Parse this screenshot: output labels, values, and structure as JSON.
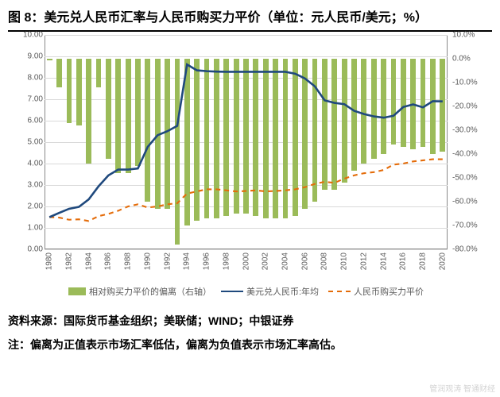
{
  "title": "图 8：美元兑人民币汇率与人民币购买力平价（单位：元人民币/美元；%）",
  "chart": {
    "type": "combo-bar-line",
    "years": [
      1980,
      1981,
      1982,
      1983,
      1984,
      1985,
      1986,
      1987,
      1988,
      1989,
      1990,
      1991,
      1992,
      1993,
      1994,
      1995,
      1996,
      1997,
      1998,
      1999,
      2000,
      2001,
      2002,
      2003,
      2004,
      2005,
      2006,
      2007,
      2008,
      2009,
      2010,
      2011,
      2012,
      2013,
      2014,
      2015,
      2016,
      2017,
      2018,
      2019,
      2020
    ],
    "x_ticks": [
      1980,
      1982,
      1984,
      1986,
      1988,
      1990,
      1992,
      1994,
      1996,
      1998,
      2000,
      2002,
      2004,
      2006,
      2008,
      2010,
      2012,
      2014,
      2016,
      2018,
      2020
    ],
    "left_axis": {
      "min": 0.0,
      "max": 10.0,
      "step": 1.0,
      "format": "fixed2"
    },
    "right_axis": {
      "min": -80.0,
      "max": 10.0,
      "step": 10.0,
      "format": "percent1"
    },
    "grid_color": "#d9d9d9",
    "border_color": "#8a8a8a",
    "tick_color": "#595959",
    "series": {
      "deviation_bars": {
        "label": "相对购买力平价的偏离（右轴）",
        "axis": "right",
        "color": "#9bbb59",
        "bar_width_frac": 0.55,
        "data": [
          -0.5,
          -12,
          -27,
          -28,
          -44,
          -12,
          -42,
          -48,
          -48,
          -45,
          -60,
          -63,
          -63,
          -78,
          -70,
          -68,
          -67,
          -67,
          -66,
          -65,
          -65,
          -66,
          -67,
          -67,
          -67,
          -66,
          -63,
          -60,
          -55,
          -55,
          -52,
          -47,
          -44,
          -42,
          -40,
          -36,
          -37,
          -38,
          -37,
          -40,
          -39
        ]
      },
      "usd_cny": {
        "label": "美元兑人民币:年均",
        "axis": "left",
        "color": "#1f497d",
        "line_width": 2.6,
        "data": [
          1.5,
          1.7,
          1.89,
          1.98,
          2.33,
          2.94,
          3.45,
          3.72,
          3.72,
          3.77,
          4.78,
          5.32,
          5.51,
          5.76,
          8.62,
          8.35,
          8.31,
          8.29,
          8.28,
          8.28,
          8.28,
          8.28,
          8.28,
          8.28,
          8.28,
          8.19,
          7.97,
          7.6,
          6.95,
          6.83,
          6.77,
          6.46,
          6.31,
          6.2,
          6.14,
          6.23,
          6.64,
          6.76,
          6.62,
          6.91,
          6.9
        ]
      },
      "ppp": {
        "label": "人民币购买力平价",
        "axis": "left",
        "color": "#e46c0a",
        "line_width": 2.1,
        "dash": "6,5",
        "data": [
          1.5,
          1.48,
          1.38,
          1.4,
          1.32,
          1.55,
          1.65,
          1.8,
          2.0,
          2.1,
          1.95,
          2.0,
          2.1,
          2.15,
          2.6,
          2.7,
          2.8,
          2.8,
          2.75,
          2.7,
          2.72,
          2.75,
          2.7,
          2.72,
          2.75,
          2.8,
          2.9,
          3.05,
          3.15,
          3.1,
          3.3,
          3.45,
          3.55,
          3.6,
          3.7,
          3.95,
          4.0,
          4.1,
          4.15,
          4.2,
          4.2
        ]
      }
    },
    "legend_order": [
      "deviation_bars",
      "usd_cny",
      "ppp"
    ]
  },
  "source_line": "资料来源：国际货币基金组织；美联储；WIND；中银证券",
  "note_line": "注：偏离为正值表示市场汇率低估，偏离为负值表示市场汇率高估。",
  "watermark": "管润观涛  智通财经"
}
